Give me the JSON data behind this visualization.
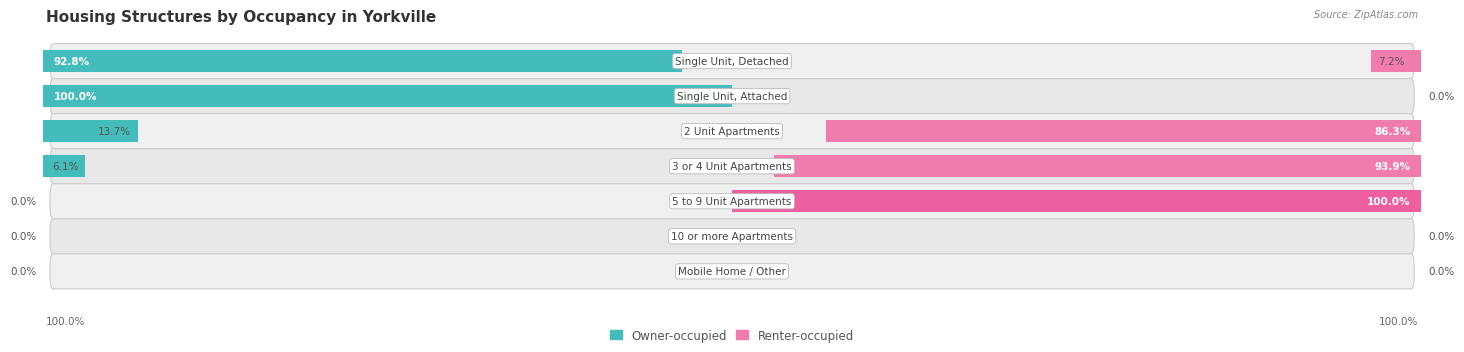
{
  "title": "Housing Structures by Occupancy in Yorkville",
  "source": "Source: ZipAtlas.com",
  "categories": [
    "Single Unit, Detached",
    "Single Unit, Attached",
    "2 Unit Apartments",
    "3 or 4 Unit Apartments",
    "5 to 9 Unit Apartments",
    "10 or more Apartments",
    "Mobile Home / Other"
  ],
  "owner_pct": [
    92.8,
    100.0,
    13.7,
    6.1,
    0.0,
    0.0,
    0.0
  ],
  "renter_pct": [
    7.2,
    0.0,
    86.3,
    93.9,
    100.0,
    0.0,
    0.0
  ],
  "owner_color": "#45BCBC",
  "renter_color": "#F07BAD",
  "renter_color_full": "#EE5FA0",
  "owner_label": "Owner-occupied",
  "renter_label": "Renter-occupied",
  "title_fontsize": 11,
  "label_fontsize": 7.5,
  "value_fontsize": 7.5,
  "axis_label_fontsize": 7.5,
  "legend_fontsize": 8.5
}
